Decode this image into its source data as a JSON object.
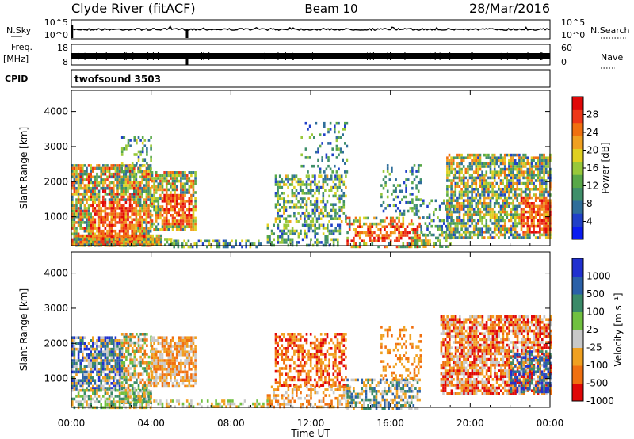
{
  "header": {
    "site_label": "Clyde River (fitACF)",
    "beam_label": "Beam 10",
    "date_label": "28/Mar/2016"
  },
  "top_panels": {
    "nsky_label": "N.Sky",
    "nsky_ticks": [
      "10^5",
      "10^0"
    ],
    "nsearch_label": "N.Search",
    "nsearch_ticks": [
      "10^5",
      "10^0"
    ],
    "freq_label": "Freq.",
    "freq_unit": "[MHz]",
    "freq_ticks": [
      "18",
      "8"
    ],
    "nave_label": "Nave",
    "nave_ticks": [
      "60",
      "0"
    ],
    "cpid_label": "CPID",
    "cpid_value": "twofsound 3503",
    "spike_hour": 5.8
  },
  "chart_data": [
    {
      "type": "heatmap",
      "name": "power",
      "xlabel": "Time UT",
      "ylabel": "Slant Range [km]",
      "xticks": [
        "00:00",
        "04:00",
        "08:00",
        "12:00",
        "16:00",
        "20:00",
        "00:00"
      ],
      "xtick_hours": [
        0,
        4,
        8,
        12,
        16,
        20,
        24
      ],
      "xlim_hours": [
        0,
        24
      ],
      "yticks": [
        "1000",
        "2000",
        "3000",
        "4000"
      ],
      "ytick_values": [
        1000,
        2000,
        3000,
        4000
      ],
      "ylim": [
        180,
        4600
      ],
      "colorbar_label": "Power [dB]",
      "colorbar_ticks": [
        "4",
        "8",
        "12",
        "16",
        "20",
        "24",
        "28"
      ],
      "colorbar_values": [
        4,
        8,
        12,
        16,
        20,
        24,
        28
      ],
      "colorbar_range": [
        0,
        32
      ],
      "colormap": [
        "#0a1cf0",
        "#2040c8",
        "#2f6e9a",
        "#3f8f6a",
        "#58a848",
        "#98c83a",
        "#e0d020",
        "#f0a020",
        "#f07010",
        "#ee3818",
        "#e00808"
      ],
      "regions": [
        {
          "t": [
            0.0,
            4.0
          ],
          "r": [
            180,
            2500
          ],
          "density": 0.82,
          "level": [
            6,
            30
          ],
          "core": [
            1.0,
            3.2,
            300,
            1500
          ]
        },
        {
          "t": [
            0.0,
            4.5
          ],
          "r": [
            180,
            500
          ],
          "density": 0.9,
          "level": [
            8,
            32
          ],
          "core": [
            1.0,
            3.5,
            180,
            500
          ]
        },
        {
          "t": [
            4.0,
            6.2
          ],
          "r": [
            600,
            2300
          ],
          "density": 0.8,
          "level": [
            6,
            28
          ],
          "core": [
            4.5,
            6.0,
            800,
            1700
          ]
        },
        {
          "t": [
            2.5,
            4.0
          ],
          "r": [
            2300,
            3300
          ],
          "density": 0.35,
          "level": [
            4,
            20
          ],
          "core": null
        },
        {
          "t": [
            0.0,
            5.0
          ],
          "r": [
            180,
            400
          ],
          "density": 0.6,
          "level": [
            6,
            28
          ],
          "core": null
        },
        {
          "t": [
            5.0,
            9.5
          ],
          "r": [
            180,
            350
          ],
          "density": 0.55,
          "level": [
            4,
            20
          ],
          "core": null
        },
        {
          "t": [
            10.2,
            13.8
          ],
          "r": [
            900,
            2200
          ],
          "density": 0.55,
          "level": [
            4,
            22
          ],
          "core": null
        },
        {
          "t": [
            9.8,
            13.5
          ],
          "r": [
            180,
            800
          ],
          "density": 0.45,
          "level": [
            4,
            20
          ],
          "core": null
        },
        {
          "t": [
            11.5,
            13.8
          ],
          "r": [
            2300,
            3700
          ],
          "density": 0.2,
          "level": [
            4,
            16
          ],
          "core": null
        },
        {
          "t": [
            13.8,
            17.5
          ],
          "r": [
            180,
            1000
          ],
          "density": 0.55,
          "level": [
            8,
            30
          ],
          "core": [
            14.0,
            17.5,
            350,
            800
          ]
        },
        {
          "t": [
            15.5,
            17.5
          ],
          "r": [
            1000,
            2500
          ],
          "density": 0.25,
          "level": [
            4,
            16
          ],
          "core": null
        },
        {
          "t": [
            17.5,
            19.0
          ],
          "r": [
            500,
            1500
          ],
          "density": 0.3,
          "level": [
            4,
            16
          ],
          "core": null
        },
        {
          "t": [
            18.8,
            24.0
          ],
          "r": [
            400,
            2800
          ],
          "density": 0.75,
          "level": [
            4,
            26
          ],
          "core": [
            22.5,
            24.0,
            600,
            1600
          ]
        },
        {
          "t": [
            17.0,
            19.0
          ],
          "r": [
            180,
            600
          ],
          "density": 0.4,
          "level": [
            8,
            24
          ],
          "core": null
        }
      ]
    },
    {
      "type": "heatmap",
      "name": "velocity",
      "xlabel": "Time UT",
      "ylabel": "Slant Range [km]",
      "xticks": [
        "00:00",
        "04:00",
        "08:00",
        "12:00",
        "16:00",
        "20:00",
        "00:00"
      ],
      "xtick_hours": [
        0,
        4,
        8,
        12,
        16,
        20,
        24
      ],
      "xlim_hours": [
        0,
        24
      ],
      "yticks": [
        "1000",
        "2000",
        "3000",
        "4000"
      ],
      "ytick_values": [
        1000,
        2000,
        3000,
        4000
      ],
      "ylim": [
        180,
        4600
      ],
      "colorbar_label": "Velocity [m s⁻¹]",
      "colorbar_ticks": [
        "1000",
        "500",
        "100",
        "25",
        "-25",
        "-100",
        "-500",
        "-1000"
      ],
      "colormap": [
        "#2030d0",
        "#2a60a8",
        "#3a8a68",
        "#70c040",
        "#c8c8c8",
        "#f0a020",
        "#f07010",
        "#e00808"
      ],
      "regions": [
        {
          "t": [
            0.0,
            2.5
          ],
          "r": [
            700,
            2200
          ],
          "density": 0.8,
          "classes": [
            0,
            1,
            2,
            4,
            5
          ]
        },
        {
          "t": [
            2.5,
            4.0
          ],
          "r": [
            300,
            2300
          ],
          "density": 0.6,
          "classes": [
            2,
            3,
            4,
            5,
            6
          ]
        },
        {
          "t": [
            4.0,
            6.2
          ],
          "r": [
            800,
            2200
          ],
          "density": 0.8,
          "classes": [
            5,
            6,
            4
          ]
        },
        {
          "t": [
            0.0,
            4.0
          ],
          "r": [
            180,
            700
          ],
          "density": 0.6,
          "classes": [
            2,
            3,
            4,
            5
          ]
        },
        {
          "t": [
            4.0,
            10.0
          ],
          "r": [
            180,
            400
          ],
          "density": 0.45,
          "classes": [
            3,
            4,
            5
          ]
        },
        {
          "t": [
            10.2,
            13.8
          ],
          "r": [
            800,
            2300
          ],
          "density": 0.55,
          "classes": [
            5,
            6,
            7
          ]
        },
        {
          "t": [
            9.8,
            14.0
          ],
          "r": [
            180,
            800
          ],
          "density": 0.5,
          "classes": [
            5,
            6,
            4
          ]
        },
        {
          "t": [
            13.8,
            17.5
          ],
          "r": [
            180,
            1000
          ],
          "density": 0.6,
          "classes": [
            1,
            2,
            4,
            5
          ]
        },
        {
          "t": [
            15.5,
            17.5
          ],
          "r": [
            1000,
            2500
          ],
          "density": 0.25,
          "classes": [
            5,
            6
          ]
        },
        {
          "t": [
            18.5,
            24.0
          ],
          "r": [
            600,
            2800
          ],
          "density": 0.75,
          "classes": [
            4,
            5,
            6,
            7
          ]
        },
        {
          "t": [
            22.0,
            24.0
          ],
          "r": [
            600,
            1800
          ],
          "density": 0.5,
          "classes": [
            0,
            1,
            2
          ]
        }
      ]
    }
  ],
  "colors": {
    "axis": "#000000",
    "background": "#ffffff"
  }
}
